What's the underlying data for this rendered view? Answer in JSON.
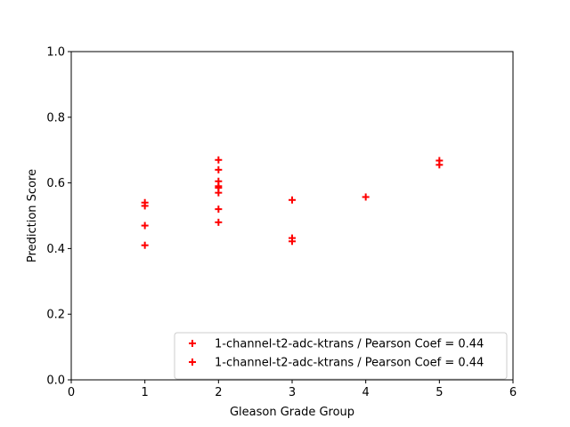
{
  "chart_data": {
    "type": "scatter",
    "xlabel": "Gleason Grade Group",
    "ylabel": "Prediction Score",
    "xlim": [
      0,
      6
    ],
    "ylim": [
      0.0,
      1.0
    ],
    "x_ticks": [
      "0",
      "1",
      "2",
      "3",
      "4",
      "5",
      "6"
    ],
    "y_ticks": [
      "0.0",
      "0.2",
      "0.4",
      "0.6",
      "0.8",
      "1.0"
    ],
    "grid": false,
    "legend_position": "lower-right",
    "marker": "plus",
    "series": [
      {
        "name": "1-channel-t2-adc-ktrans / Pearson Coef = 0.44",
        "color": "#ff0000",
        "x": [
          1,
          1,
          1,
          1,
          2,
          2,
          2,
          2,
          2,
          2,
          2,
          2,
          3,
          3,
          3,
          4,
          5,
          5
        ],
        "y": [
          0.54,
          0.53,
          0.47,
          0.41,
          0.67,
          0.64,
          0.605,
          0.585,
          0.57,
          0.52,
          0.48,
          0.59,
          0.548,
          0.432,
          0.422,
          0.557,
          0.668,
          0.655
        ]
      },
      {
        "name": "1-channel-t2-adc-ktrans / Pearson Coef = 0.44",
        "color": "#ff0000",
        "x": [],
        "y": []
      }
    ]
  }
}
